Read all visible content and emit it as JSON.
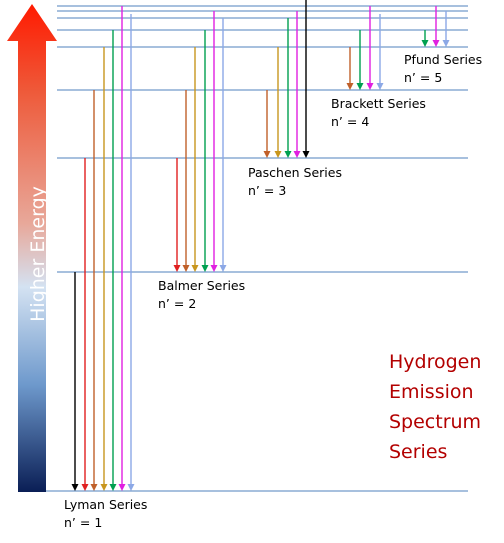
{
  "energy_arrow": {
    "label": "Higher Energy",
    "gradient_colors": [
      "#ff0000",
      "#d5e3f2",
      "#0a1e55"
    ]
  },
  "series": [
    {
      "name": "Lyman Series",
      "level": "n’ = 1"
    },
    {
      "name": "Balmer Series",
      "level": "n’ = 2"
    },
    {
      "name": "Paschen Series",
      "level": "n’ = 3"
    },
    {
      "name": "Brackett Series",
      "level": "n’ = 4"
    },
    {
      "name": "Pfund Series",
      "level": "n’ = 5"
    }
  ],
  "title": {
    "lines": [
      "Hydrogen",
      "Emission",
      "Spectrum",
      "Series"
    ],
    "color": "#b30000"
  },
  "colors": {
    "level_line": "#4f81bd",
    "transitions": [
      "#000000",
      "#e02020",
      "#c0602a",
      "#c8961e",
      "#00a050",
      "#e020e0",
      "#8ca8e6"
    ]
  }
}
